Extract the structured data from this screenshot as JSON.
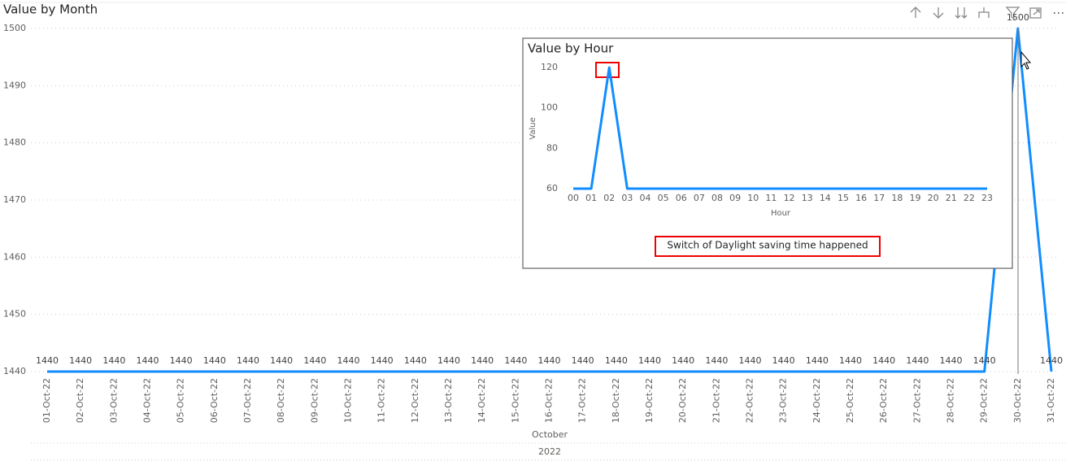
{
  "chart_data": [
    {
      "type": "line",
      "title": "Value by Month",
      "categories": [
        "01-Oct-22",
        "02-Oct-22",
        "03-Oct-22",
        "04-Oct-22",
        "05-Oct-22",
        "06-Oct-22",
        "07-Oct-22",
        "08-Oct-22",
        "09-Oct-22",
        "10-Oct-22",
        "11-Oct-22",
        "12-Oct-22",
        "13-Oct-22",
        "14-Oct-22",
        "15-Oct-22",
        "16-Oct-22",
        "17-Oct-22",
        "18-Oct-22",
        "19-Oct-22",
        "20-Oct-22",
        "21-Oct-22",
        "22-Oct-22",
        "23-Oct-22",
        "24-Oct-22",
        "25-Oct-22",
        "26-Oct-22",
        "27-Oct-22",
        "28-Oct-22",
        "29-Oct-22",
        "30-Oct-22",
        "31-Oct-22"
      ],
      "values": [
        1440,
        1440,
        1440,
        1440,
        1440,
        1440,
        1440,
        1440,
        1440,
        1440,
        1440,
        1440,
        1440,
        1440,
        1440,
        1440,
        1440,
        1440,
        1440,
        1440,
        1440,
        1440,
        1440,
        1440,
        1440,
        1440,
        1440,
        1440,
        1440,
        1500,
        1440
      ],
      "x_axis_groups": [
        "October",
        "2022"
      ],
      "color": "#118DFF",
      "ylim": [
        1440,
        1500
      ],
      "yticks": [
        1440,
        1450,
        1460,
        1470,
        1480,
        1490,
        1500
      ],
      "grid": true,
      "data_labels": true
    },
    {
      "type": "line",
      "title": "Value by Hour",
      "x_label": "Hour",
      "y_label": "Value",
      "categories": [
        "00",
        "01",
        "02",
        "03",
        "04",
        "05",
        "06",
        "07",
        "08",
        "09",
        "10",
        "11",
        "12",
        "13",
        "14",
        "15",
        "16",
        "17",
        "18",
        "19",
        "20",
        "21",
        "22",
        "23"
      ],
      "values": [
        60,
        60,
        120,
        60,
        60,
        60,
        60,
        60,
        60,
        60,
        60,
        60,
        60,
        60,
        60,
        60,
        60,
        60,
        60,
        60,
        60,
        60,
        60,
        60
      ],
      "color": "#118DFF",
      "ylim": [
        60,
        120
      ],
      "yticks": [
        60,
        80,
        100,
        120
      ],
      "grid": false,
      "data_labels": false,
      "annotation": "Switch of Daylight saving time happened"
    }
  ]
}
